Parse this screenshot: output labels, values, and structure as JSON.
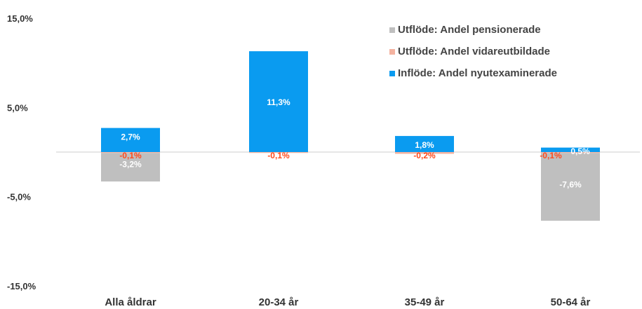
{
  "chart_data": {
    "type": "bar",
    "categories": [
      "Alla åldrar",
      "20-34 år",
      "35-49 år",
      "50-64 år"
    ],
    "ylim": [
      -15,
      15
    ],
    "yticks": [
      "15,0%",
      "5,0%",
      "-5,0%",
      "-15,0%"
    ],
    "ytick_values": [
      15,
      5,
      -5,
      -15
    ],
    "legend_position": "top-right",
    "grid": false,
    "series": [
      {
        "name": "Utflöde: Andel pensionerade",
        "color": "#bfbfbf",
        "values": [
          -3.2,
          0,
          0,
          -7.6
        ],
        "labels": [
          "-3,2%",
          "",
          "",
          "-7,6%"
        ]
      },
      {
        "name": "Utflöde: Andel vidareutbildade",
        "color": "#f4b3a0",
        "label_color": "#ff4a1c",
        "values": [
          -0.1,
          -0.1,
          -0.2,
          -0.1
        ],
        "labels": [
          "-0,1%",
          "-0,1%",
          "-0,2%",
          "-0,1%"
        ]
      },
      {
        "name": "Inflöde: Andel nyutexaminerade",
        "color": "#0a9bf0",
        "values": [
          2.7,
          11.3,
          1.8,
          0.5
        ],
        "labels": [
          "2,7%",
          "11,3%",
          "1,8%",
          "0,5%"
        ]
      }
    ]
  }
}
